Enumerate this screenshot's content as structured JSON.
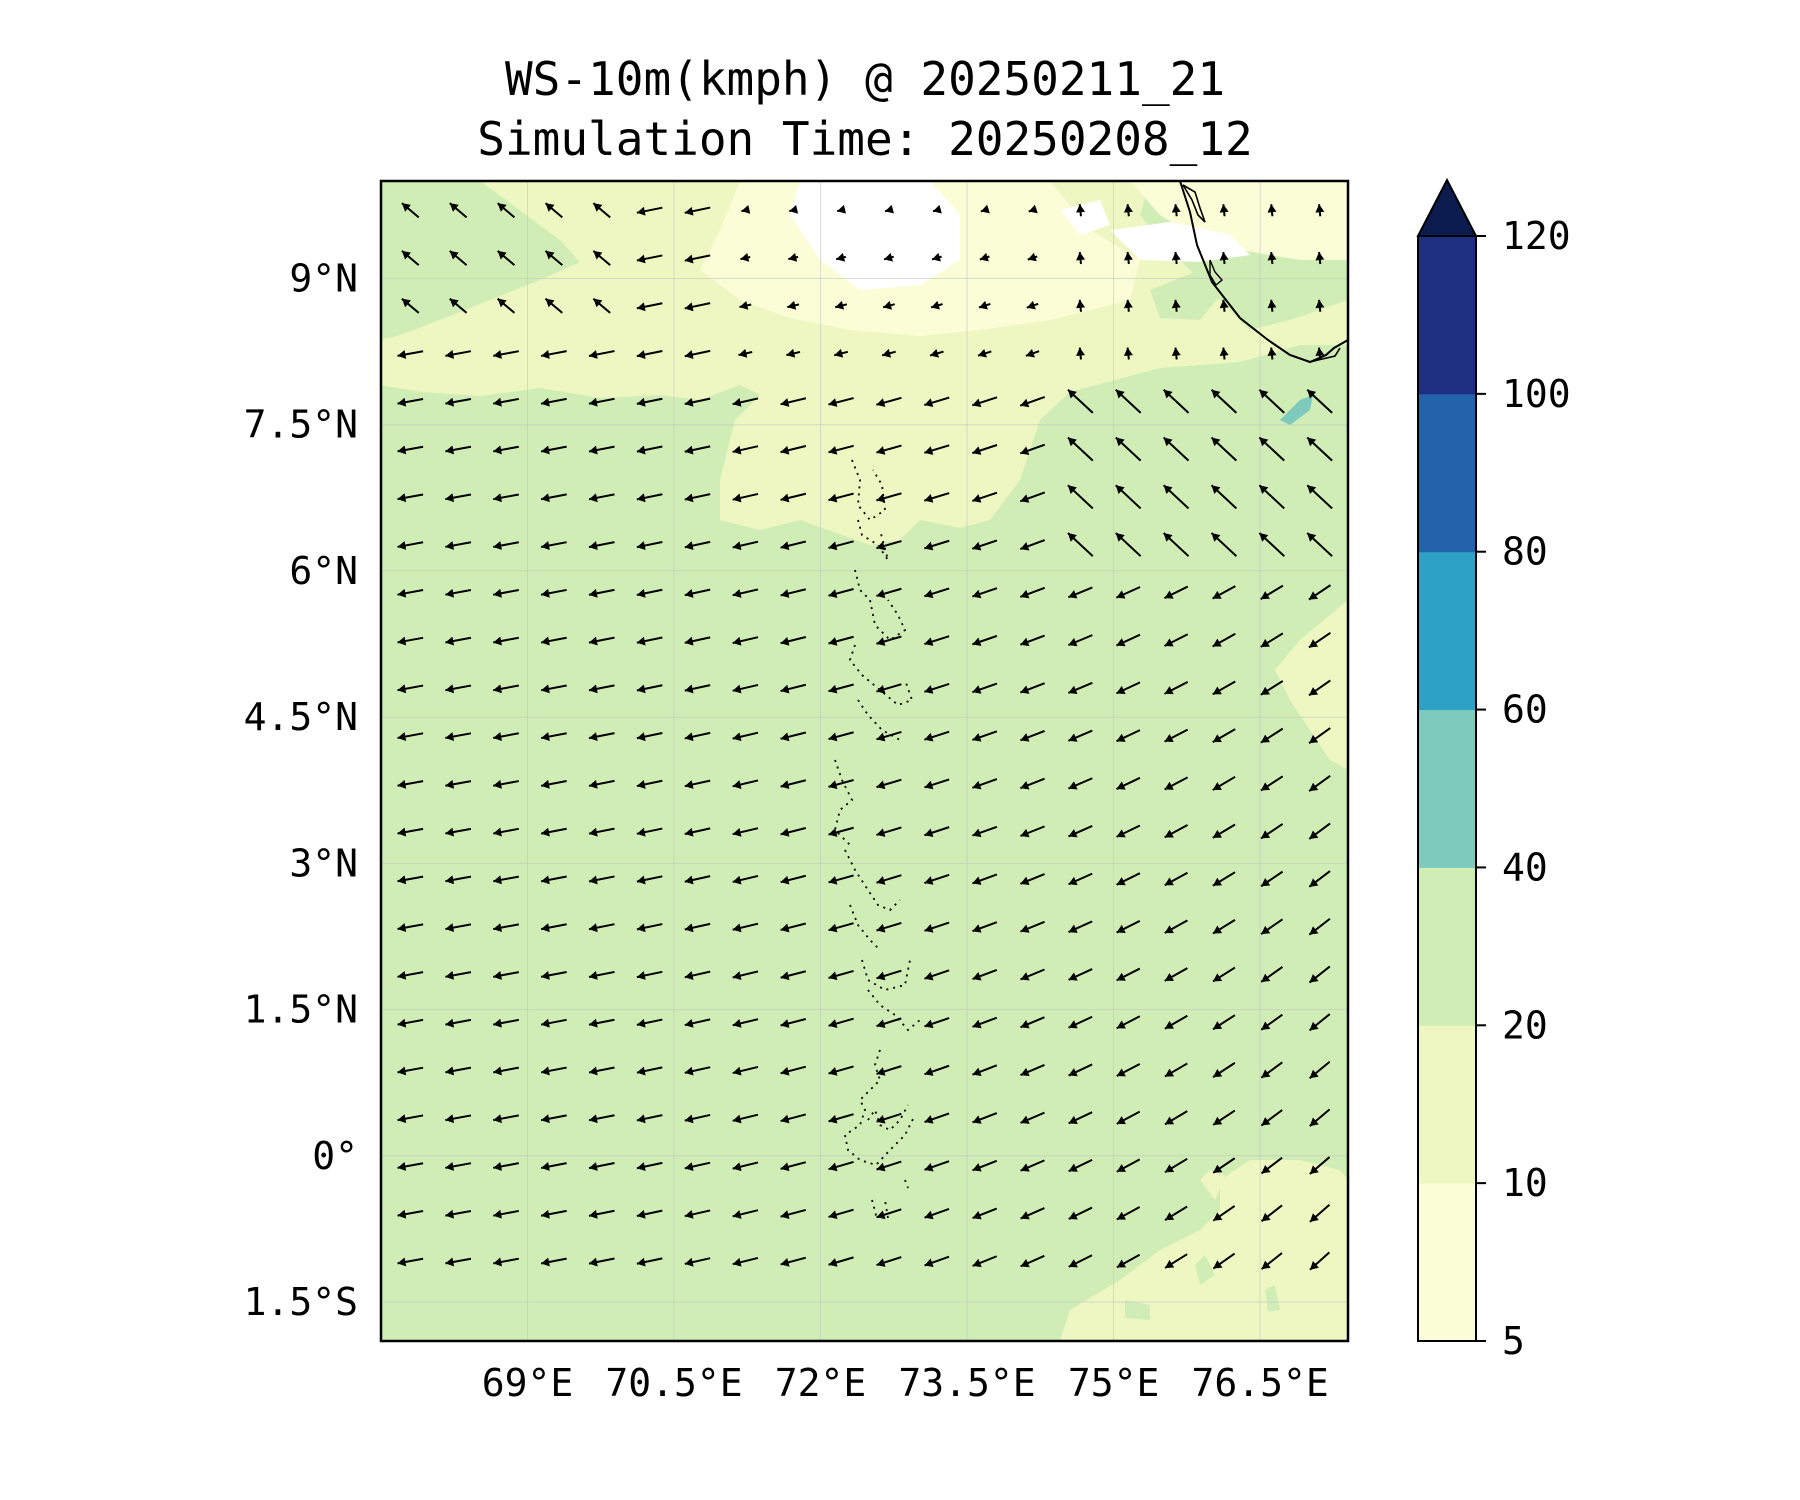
{
  "title": "WS-10m(kmph) @ 20250211_21",
  "subtitle": "Simulation Time: 20250208_12",
  "colors": {
    "c5_10": "#fbfdd6",
    "c10_20": "#eef7c2",
    "c20_40": "#d1edb6",
    "c40_60": "#7ecabc",
    "c60_80": "#2ea2c4",
    "c80_100": "#2263aa",
    "c100_120": "#1f2f82",
    "c_over": "#0c1c4f",
    "calm": "#ffffff"
  },
  "chart_data": {
    "type": "heatmap",
    "map_extent": {
      "lon": [
        67.5,
        77.4
      ],
      "lat": [
        -1.9,
        10.0
      ]
    },
    "x_ticks": [
      {
        "value": 69,
        "label": "69°E"
      },
      {
        "value": 70.5,
        "label": "70.5°E"
      },
      {
        "value": 72,
        "label": "72°E"
      },
      {
        "value": 73.5,
        "label": "73.5°E"
      },
      {
        "value": 75,
        "label": "75°E"
      },
      {
        "value": 76.5,
        "label": "76.5°E"
      }
    ],
    "y_ticks": [
      {
        "value": 9,
        "label": "9°N"
      },
      {
        "value": 7.5,
        "label": "7.5°N"
      },
      {
        "value": 6,
        "label": "6°N"
      },
      {
        "value": 4.5,
        "label": "4.5°N"
      },
      {
        "value": 3,
        "label": "3°N"
      },
      {
        "value": 1.5,
        "label": "1.5°N"
      },
      {
        "value": 0,
        "label": "0°"
      },
      {
        "value": -1.5,
        "label": "1.5°S"
      }
    ],
    "gridlines": true,
    "colorbar": {
      "levels": [
        5,
        10,
        20,
        40,
        60,
        80,
        100,
        120
      ],
      "tick_labels": [
        "5",
        "10",
        "20",
        "40",
        "60",
        "80",
        "100",
        "120"
      ],
      "extend": "max",
      "orientation": "vertical",
      "placement": "right"
    },
    "wind_vectors": {
      "lon_start": 67.8,
      "lon_step": 0.49,
      "lon_count": 20,
      "lat_start": 9.7,
      "lat_step": -0.49,
      "lat_count": 23,
      "units": "kmph"
    }
  }
}
